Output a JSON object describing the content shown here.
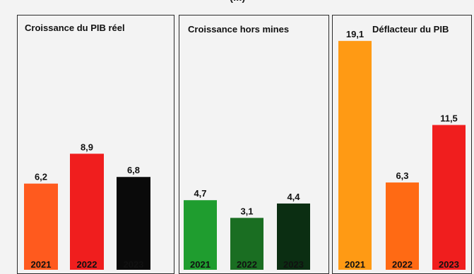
{
  "header_fragment": "(...)",
  "chart_data": [
    {
      "type": "bar",
      "title": "Croissance du PIB réel",
      "categories": [
        "2021",
        "2022",
        "2023"
      ],
      "values": [
        6.2,
        8.9,
        6.8
      ],
      "value_labels": [
        "6,2",
        "8,9",
        "6,8"
      ],
      "colors": [
        "#ff5a1e",
        "#f01e1e",
        "#0a0a0a"
      ]
    },
    {
      "type": "bar",
      "title": "Croissance hors mines",
      "categories": [
        "2021",
        "2022",
        "2023"
      ],
      "values": [
        4.7,
        3.1,
        4.4
      ],
      "value_labels": [
        "4,7",
        "3,1",
        "4,4"
      ],
      "colors": [
        "#1f9d2f",
        "#1a6e22",
        "#0b2e12"
      ]
    },
    {
      "type": "bar",
      "title": "Déflacteur du PIB",
      "categories": [
        "2021",
        "2022",
        "2023"
      ],
      "values": [
        19.1,
        6.3,
        11.5
      ],
      "value_labels": [
        "19,1",
        "6,3",
        "11,5"
      ],
      "colors": [
        "#ff9a14",
        "#ff6a14",
        "#f01e1e"
      ]
    }
  ]
}
